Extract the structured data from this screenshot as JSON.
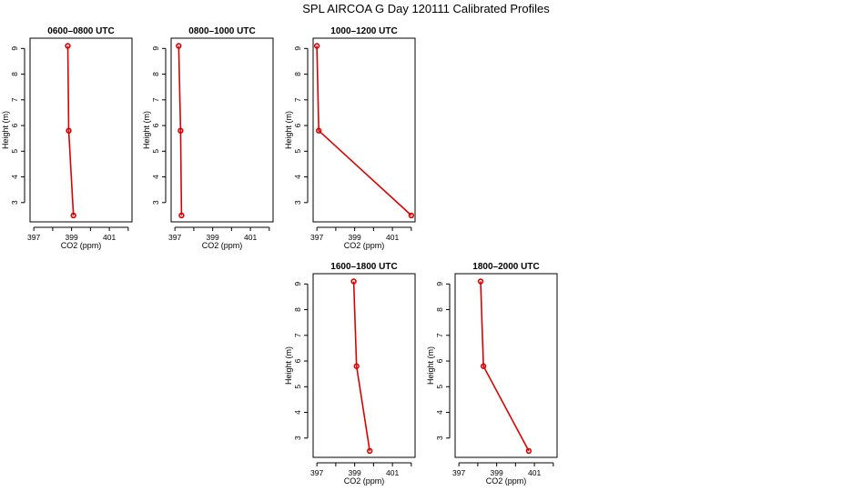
{
  "title": "SPL AIRCOA G  Day 120111  Calibrated Profiles",
  "colors": {
    "series": "#dd0000",
    "axes": "#000000",
    "background": "#ffffff"
  },
  "chart_data": [
    {
      "type": "line",
      "title": "0600–0800 UTC",
      "xlabel": "CO2 (ppm)",
      "ylabel": "Height (m)",
      "xlim": [
        396.8,
        402.2
      ],
      "ylim": [
        2.25,
        9.4
      ],
      "xticks": [
        397,
        398,
        399,
        400,
        401,
        402
      ],
      "xtick_labels": [
        "397",
        "",
        "399",
        "",
        "401",
        ""
      ],
      "yticks": [
        3,
        4,
        5,
        6,
        7,
        8,
        9
      ],
      "grid": false,
      "points": [
        {
          "x": 398.8,
          "y": 9.1
        },
        {
          "x": 398.85,
          "y": 5.8
        },
        {
          "x": 399.1,
          "y": 2.5
        }
      ]
    },
    {
      "type": "line",
      "title": "0800–1000 UTC",
      "xlabel": "CO2 (ppm)",
      "ylabel": "Height (m)",
      "xlim": [
        396.8,
        402.2
      ],
      "ylim": [
        2.25,
        9.4
      ],
      "xticks": [
        397,
        398,
        399,
        400,
        401,
        402
      ],
      "xtick_labels": [
        "397",
        "",
        "399",
        "",
        "401",
        ""
      ],
      "yticks": [
        3,
        4,
        5,
        6,
        7,
        8,
        9
      ],
      "grid": false,
      "points": [
        {
          "x": 397.2,
          "y": 9.1
        },
        {
          "x": 397.3,
          "y": 5.8
        },
        {
          "x": 397.35,
          "y": 2.5
        }
      ]
    },
    {
      "type": "line",
      "title": "1000–1200 UTC",
      "xlabel": "CO2 (ppm)",
      "ylabel": "Height (m)",
      "xlim": [
        396.8,
        402.2
      ],
      "ylim": [
        2.25,
        9.4
      ],
      "xticks": [
        397,
        398,
        399,
        400,
        401,
        402
      ],
      "xtick_labels": [
        "397",
        "",
        "399",
        "",
        "401",
        ""
      ],
      "yticks": [
        3,
        4,
        5,
        6,
        7,
        8,
        9
      ],
      "grid": false,
      "points": [
        {
          "x": 397.0,
          "y": 9.1
        },
        {
          "x": 397.1,
          "y": 5.8
        },
        {
          "x": 402.0,
          "y": 2.5
        }
      ]
    },
    {
      "type": "line",
      "title": "1600–1800 UTC",
      "xlabel": "CO2 (ppm)",
      "ylabel": "Height (m)",
      "xlim": [
        396.8,
        402.2
      ],
      "ylim": [
        2.25,
        9.4
      ],
      "xticks": [
        397,
        398,
        399,
        400,
        401,
        402
      ],
      "xtick_labels": [
        "397",
        "",
        "399",
        "",
        "401",
        ""
      ],
      "yticks": [
        3,
        4,
        5,
        6,
        7,
        8,
        9
      ],
      "grid": false,
      "points": [
        {
          "x": 398.95,
          "y": 9.1
        },
        {
          "x": 399.1,
          "y": 5.8
        },
        {
          "x": 399.8,
          "y": 2.5
        }
      ]
    },
    {
      "type": "line",
      "title": "1800–2000 UTC",
      "xlabel": "CO2 (ppm)",
      "ylabel": "Height (m)",
      "xlim": [
        396.8,
        402.2
      ],
      "ylim": [
        2.25,
        9.4
      ],
      "xticks": [
        397,
        398,
        399,
        400,
        401,
        402
      ],
      "xtick_labels": [
        "397",
        "",
        "399",
        "",
        "401",
        ""
      ],
      "yticks": [
        3,
        4,
        5,
        6,
        7,
        8,
        9
      ],
      "grid": false,
      "points": [
        {
          "x": 398.15,
          "y": 9.1
        },
        {
          "x": 398.3,
          "y": 5.8
        },
        {
          "x": 400.7,
          "y": 2.5
        }
      ]
    }
  ]
}
